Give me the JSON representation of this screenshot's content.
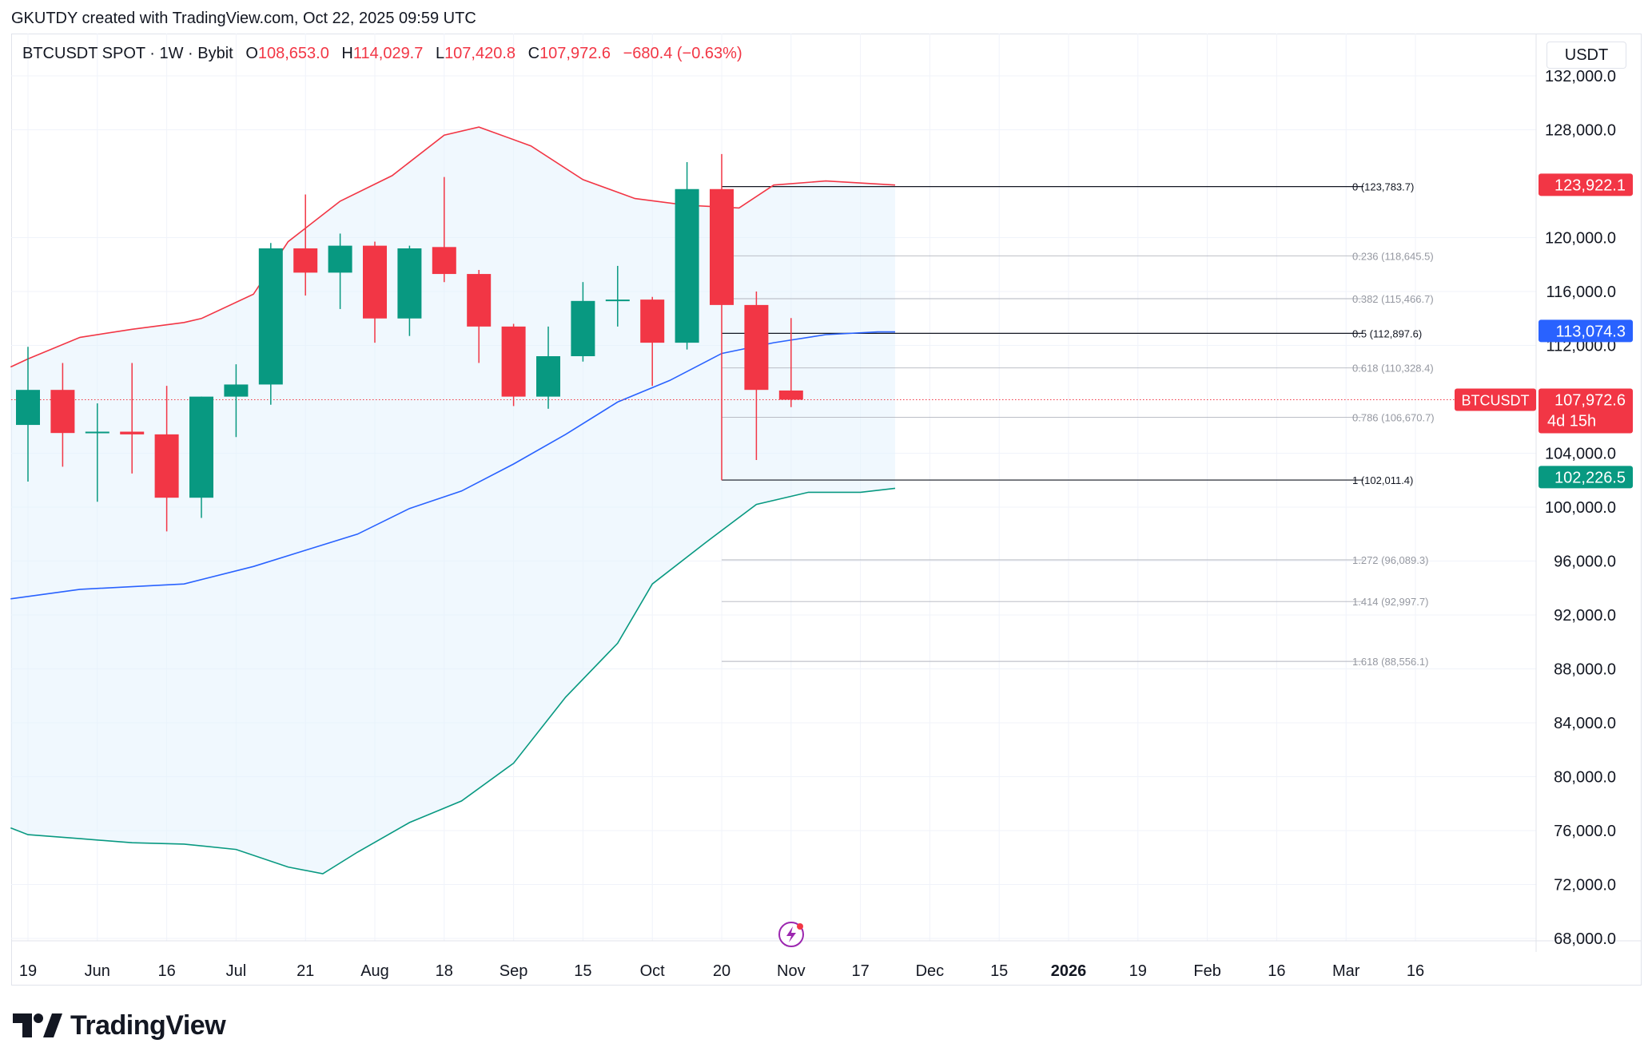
{
  "attribution": "GKUTDY created with TradingView.com, Oct 22, 2025 09:59 UTC",
  "legend": {
    "symbol": "BTCUSDT SPOT · 1W · Bybit",
    "open_label": "O",
    "open": "108,653.0",
    "high_label": "H",
    "high": "114,029.7",
    "low_label": "L",
    "low": "107,420.8",
    "close_label": "C",
    "close": "107,972.6",
    "change": "−680.4 (−0.63%)"
  },
  "currency_button": "USDT",
  "brand": "TradingView",
  "chart_data": {
    "type": "candlestick",
    "y_scale": "linear",
    "ylim": [
      66000,
      134000
    ],
    "y_ticks": [
      {
        "value": 132000,
        "label": "132,000.0"
      },
      {
        "value": 128000,
        "label": "128,000.0"
      },
      {
        "value": 120000,
        "label": "120,000.0"
      },
      {
        "value": 116000,
        "label": "116,000.0"
      },
      {
        "value": 112000,
        "label": "112,000.0"
      },
      {
        "value": 104000,
        "label": "104,000.0"
      },
      {
        "value": 100000,
        "label": "100,000.0"
      },
      {
        "value": 96000,
        "label": "96,000.0"
      },
      {
        "value": 92000,
        "label": "92,000.0"
      },
      {
        "value": 88000,
        "label": "88,000.0"
      },
      {
        "value": 84000,
        "label": "84,000.0"
      },
      {
        "value": 80000,
        "label": "80,000.0"
      },
      {
        "value": 76000,
        "label": "76,000.0"
      },
      {
        "value": 72000,
        "label": "72,000.0"
      },
      {
        "value": 68000,
        "label": "68,000.0"
      }
    ],
    "x_ticks": [
      {
        "slot": 0,
        "label": "19",
        "bold": false
      },
      {
        "slot": 2,
        "label": "Jun",
        "bold": false
      },
      {
        "slot": 4,
        "label": "16",
        "bold": false
      },
      {
        "slot": 6,
        "label": "Jul",
        "bold": false
      },
      {
        "slot": 8,
        "label": "21",
        "bold": false
      },
      {
        "slot": 10,
        "label": "Aug",
        "bold": false
      },
      {
        "slot": 12,
        "label": "18",
        "bold": false
      },
      {
        "slot": 14,
        "label": "Sep",
        "bold": false
      },
      {
        "slot": 16,
        "label": "15",
        "bold": false
      },
      {
        "slot": 18,
        "label": "Oct",
        "bold": false
      },
      {
        "slot": 20,
        "label": "20",
        "bold": false
      },
      {
        "slot": 22,
        "label": "Nov",
        "bold": false
      },
      {
        "slot": 24,
        "label": "17",
        "bold": false
      },
      {
        "slot": 26,
        "label": "Dec",
        "bold": false
      },
      {
        "slot": 28,
        "label": "15",
        "bold": false
      },
      {
        "slot": 30,
        "label": "2026",
        "bold": true
      },
      {
        "slot": 32,
        "label": "19",
        "bold": false
      },
      {
        "slot": 34,
        "label": "Feb",
        "bold": false
      },
      {
        "slot": 36,
        "label": "16",
        "bold": false
      },
      {
        "slot": 38,
        "label": "Mar",
        "bold": false
      },
      {
        "slot": 40,
        "label": "16",
        "bold": false
      }
    ],
    "candles": [
      {
        "slot": 0,
        "open": 106100,
        "high": 111900,
        "low": 101900,
        "close": 108700
      },
      {
        "slot": 1,
        "open": 108700,
        "high": 110700,
        "low": 103000,
        "close": 105500
      },
      {
        "slot": 2,
        "open": 105500,
        "high": 107700,
        "low": 100400,
        "close": 105600
      },
      {
        "slot": 3,
        "open": 105600,
        "high": 110700,
        "low": 102500,
        "close": 105400
      },
      {
        "slot": 4,
        "open": 105400,
        "high": 109000,
        "low": 98200,
        "close": 100700
      },
      {
        "slot": 5,
        "open": 100700,
        "high": 108200,
        "low": 99200,
        "close": 108200
      },
      {
        "slot": 6,
        "open": 108200,
        "high": 110600,
        "low": 105200,
        "close": 109100
      },
      {
        "slot": 7,
        "open": 109100,
        "high": 119600,
        "low": 107600,
        "close": 119200
      },
      {
        "slot": 8,
        "open": 119200,
        "high": 123200,
        "low": 115700,
        "close": 117400
      },
      {
        "slot": 9,
        "open": 117400,
        "high": 120300,
        "low": 114700,
        "close": 119400
      },
      {
        "slot": 10,
        "open": 119400,
        "high": 119700,
        "low": 112200,
        "close": 114000
      },
      {
        "slot": 11,
        "open": 114000,
        "high": 119400,
        "low": 112700,
        "close": 119200
      },
      {
        "slot": 12,
        "open": 119300,
        "high": 124500,
        "low": 116700,
        "close": 117300
      },
      {
        "slot": 13,
        "open": 117300,
        "high": 117600,
        "low": 110700,
        "close": 113400
      },
      {
        "slot": 14,
        "open": 113400,
        "high": 113600,
        "low": 107500,
        "close": 108200
      },
      {
        "slot": 15,
        "open": 108200,
        "high": 113400,
        "low": 107300,
        "close": 111200
      },
      {
        "slot": 16,
        "open": 111200,
        "high": 116700,
        "low": 110800,
        "close": 115300
      },
      {
        "slot": 17,
        "open": 115300,
        "high": 117900,
        "low": 113400,
        "close": 115400
      },
      {
        "slot": 18,
        "open": 115400,
        "high": 115600,
        "low": 109000,
        "close": 112200
      },
      {
        "slot": 19,
        "open": 112200,
        "high": 125600,
        "low": 111700,
        "close": 123600
      },
      {
        "slot": 20,
        "open": 123600,
        "high": 126200,
        "low": 102000,
        "close": 115000
      },
      {
        "slot": 21,
        "open": 115000,
        "high": 116000,
        "low": 103500,
        "close": 108700
      },
      {
        "slot": 22,
        "open": 108653,
        "high": 114030,
        "low": 107421,
        "close": 107973
      }
    ],
    "bollinger": {
      "upper": [
        {
          "slot": -0.5,
          "value": 110400
        },
        {
          "slot": 0,
          "value": 111000
        },
        {
          "slot": 1.5,
          "value": 112600
        },
        {
          "slot": 3,
          "value": 113200
        },
        {
          "slot": 4.5,
          "value": 113700
        },
        {
          "slot": 5,
          "value": 114000
        },
        {
          "slot": 6.5,
          "value": 115800
        },
        {
          "slot": 7.5,
          "value": 119700
        },
        {
          "slot": 9,
          "value": 122700
        },
        {
          "slot": 10.5,
          "value": 124600
        },
        {
          "slot": 12,
          "value": 127600
        },
        {
          "slot": 13,
          "value": 128200
        },
        {
          "slot": 14.5,
          "value": 126800
        },
        {
          "slot": 16,
          "value": 124300
        },
        {
          "slot": 17.5,
          "value": 122900
        },
        {
          "slot": 19,
          "value": 122400
        },
        {
          "slot": 20.5,
          "value": 122200
        },
        {
          "slot": 21.5,
          "value": 123900
        },
        {
          "slot": 23,
          "value": 124200
        },
        {
          "slot": 25,
          "value": 123900
        }
      ],
      "middle": [
        {
          "slot": -0.5,
          "value": 93200
        },
        {
          "slot": 1.5,
          "value": 93900
        },
        {
          "slot": 3,
          "value": 94100
        },
        {
          "slot": 4.5,
          "value": 94300
        },
        {
          "slot": 6.5,
          "value": 95600
        },
        {
          "slot": 8,
          "value": 96800
        },
        {
          "slot": 9.5,
          "value": 98000
        },
        {
          "slot": 11,
          "value": 99900
        },
        {
          "slot": 12.5,
          "value": 101200
        },
        {
          "slot": 14,
          "value": 103200
        },
        {
          "slot": 15.5,
          "value": 105400
        },
        {
          "slot": 17,
          "value": 107800
        },
        {
          "slot": 18.5,
          "value": 109400
        },
        {
          "slot": 20,
          "value": 111400
        },
        {
          "slot": 21.5,
          "value": 112200
        },
        {
          "slot": 23,
          "value": 112800
        },
        {
          "slot": 24.5,
          "value": 113000
        },
        {
          "slot": 25,
          "value": 113000
        }
      ],
      "lower": [
        {
          "slot": -0.5,
          "value": 76200
        },
        {
          "slot": 0,
          "value": 75700
        },
        {
          "slot": 1.5,
          "value": 75400
        },
        {
          "slot": 3,
          "value": 75100
        },
        {
          "slot": 4.5,
          "value": 75000
        },
        {
          "slot": 6,
          "value": 74600
        },
        {
          "slot": 7.5,
          "value": 73300
        },
        {
          "slot": 8.5,
          "value": 72800
        },
        {
          "slot": 9.5,
          "value": 74400
        },
        {
          "slot": 11,
          "value": 76600
        },
        {
          "slot": 12.5,
          "value": 78200
        },
        {
          "slot": 14,
          "value": 81000
        },
        {
          "slot": 15.5,
          "value": 85900
        },
        {
          "slot": 17,
          "value": 89900
        },
        {
          "slot": 18,
          "value": 94300
        },
        {
          "slot": 19.5,
          "value": 97300
        },
        {
          "slot": 21,
          "value": 100200
        },
        {
          "slot": 22.5,
          "value": 101100
        },
        {
          "slot": 24,
          "value": 101100
        },
        {
          "slot": 25,
          "value": 101400
        }
      ],
      "colors": {
        "upper": "#f23645",
        "middle": "#2962ff",
        "lower": "#089981",
        "fill": "#e3f2fd"
      }
    },
    "fibonacci": {
      "start_slot": 20,
      "end_slot": 38.5,
      "levels": [
        {
          "ratio": "0",
          "price": 123783.7,
          "label": "0 (123,783.7)",
          "major": true
        },
        {
          "ratio": "0.236",
          "price": 118645.5,
          "label": "0.236 (118,645.5)",
          "major": false
        },
        {
          "ratio": "0.382",
          "price": 115466.7,
          "label": "0.382 (115,466.7)",
          "major": false
        },
        {
          "ratio": "0.5",
          "price": 112897.6,
          "label": "0.5 (112,897.6)",
          "major": true
        },
        {
          "ratio": "0.618",
          "price": 110328.4,
          "label": "0.618 (110,328.4)",
          "major": false
        },
        {
          "ratio": "0.786",
          "price": 106670.7,
          "label": "0.786 (106,670.7)",
          "major": false
        },
        {
          "ratio": "1",
          "price": 102011.4,
          "label": "1 (102,011.4)",
          "major": true
        },
        {
          "ratio": "1.272",
          "price": 96089.3,
          "label": "1.272 (96,089.3)",
          "major": false
        },
        {
          "ratio": "1.414",
          "price": 92997.7,
          "label": "1.414 (92,997.7)",
          "major": false
        },
        {
          "ratio": "1.618",
          "price": 88556.1,
          "label": "1.618 (88,556.1)",
          "major": false
        }
      ]
    },
    "current_price": {
      "value": 107972.6,
      "label": "107,972.6",
      "symbol_tag": "BTCUSDT",
      "countdown": "4d 15h",
      "color": "#f23645"
    },
    "price_markers": [
      {
        "value": 123922.1,
        "label": "123,922.1",
        "color": "#f23645"
      },
      {
        "value": 113074.3,
        "label": "113,074.3",
        "color": "#2962ff"
      },
      {
        "value": 102226.5,
        "label": "102,226.5",
        "color": "#089981"
      }
    ],
    "colors": {
      "up": "#089981",
      "down": "#f23645"
    }
  }
}
